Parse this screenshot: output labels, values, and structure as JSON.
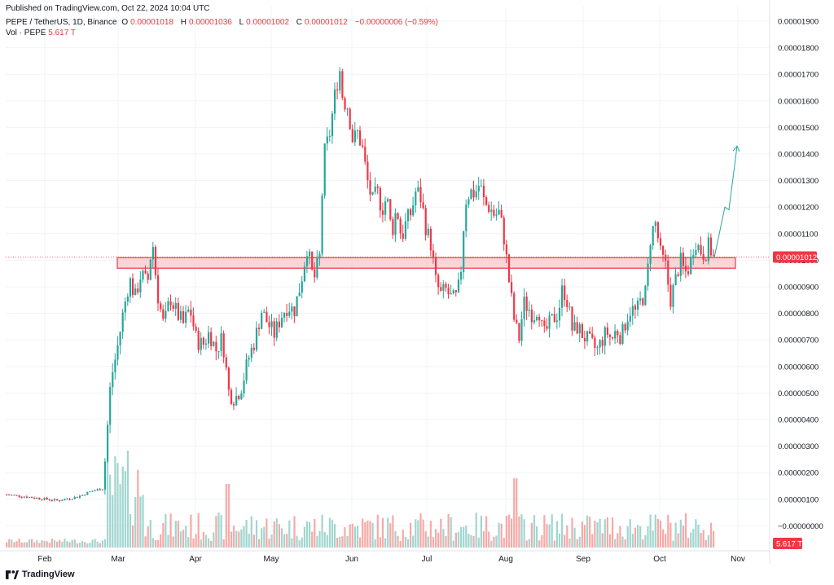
{
  "header": {
    "published": "Published on TradingView.com, Oct 22, 2024 10:04 UTC"
  },
  "legend": {
    "symbol": "PEPE / TetherUS, 1D, Binance",
    "o_label": "O",
    "o": "0.00001018",
    "h_label": "H",
    "h": "0.00001036",
    "l_label": "L",
    "l": "0.00001002",
    "c_label": "C",
    "c": "0.00001012",
    "change": "−0.00000006 (−0.59%)",
    "vol_label": "Vol · PEPE",
    "vol": "5.617 T"
  },
  "footer": {
    "brand": "TradingView"
  },
  "colors": {
    "up": "#26a69a",
    "down": "#f23645",
    "zone_fill": "#f9c5cb",
    "zone_border": "#f23645",
    "arrow": "#26a69a"
  },
  "chart_data": {
    "type": "candlestick",
    "y_ticks": [
      "0.00001900",
      "0.00001800",
      "0.00001700",
      "0.00001600",
      "0.00001500",
      "0.00001400",
      "0.00001300",
      "0.00001200",
      "0.00001100",
      "0.00001000",
      "0.00000900",
      "0.00000800",
      "0.00000700",
      "0.00000600",
      "0.00000500",
      "0.00000400",
      "0.00000300",
      "0.00000200",
      "0.00000100",
      "−0.00000000"
    ],
    "y_tick_values": [
      19,
      18,
      17,
      16,
      15,
      14,
      13,
      12,
      11,
      10,
      9,
      8,
      7,
      6,
      5,
      4,
      3,
      2,
      1,
      0
    ],
    "y_unit": "1e-6",
    "x_ticks": [
      "Feb",
      "Mar",
      "Apr",
      "May",
      "Jun",
      "Jul",
      "Aug",
      "Sep",
      "Oct",
      "Nov"
    ],
    "last_price_label": "0.00001012",
    "last_price": 10.12,
    "volume_label": "5.617 T",
    "support_zone": [
      9.7,
      10.1
    ],
    "projection": [
      [
        10.1,
        0
      ],
      [
        12.0,
        1
      ],
      [
        11.9,
        0
      ],
      [
        14.3,
        1
      ]
    ],
    "price_path": [
      [
        0,
        1.2
      ],
      [
        30,
        1.1
      ],
      [
        70,
        0.95
      ],
      [
        95,
        1.1
      ],
      [
        110,
        1.3
      ],
      [
        125,
        1.4
      ],
      [
        128,
        2.5
      ],
      [
        135,
        5.5
      ],
      [
        142,
        6.5
      ],
      [
        150,
        8.0
      ],
      [
        158,
        9.3
      ],
      [
        165,
        8.6
      ],
      [
        172,
        9.5
      ],
      [
        180,
        9.1
      ],
      [
        186,
        10.8
      ],
      [
        192,
        8.8
      ],
      [
        200,
        7.5
      ],
      [
        208,
        8.6
      ],
      [
        216,
        8.0
      ],
      [
        224,
        7.6
      ],
      [
        232,
        8.2
      ],
      [
        240,
        7.0
      ],
      [
        248,
        6.8
      ],
      [
        256,
        7.3
      ],
      [
        264,
        6.6
      ],
      [
        272,
        7.1
      ],
      [
        280,
        5.0
      ],
      [
        288,
        4.8
      ],
      [
        296,
        5.3
      ],
      [
        304,
        6.3
      ],
      [
        312,
        7.0
      ],
      [
        320,
        8.1
      ],
      [
        328,
        7.6
      ],
      [
        336,
        7.2
      ],
      [
        344,
        7.9
      ],
      [
        352,
        8.3
      ],
      [
        360,
        8.1
      ],
      [
        368,
        9.1
      ],
      [
        376,
        10.5
      ],
      [
        384,
        9.2
      ],
      [
        392,
        10.2
      ],
      [
        396,
        13.9
      ],
      [
        404,
        14.8
      ],
      [
        410,
        16.2
      ],
      [
        416,
        17.2
      ],
      [
        420,
        16.0
      ],
      [
        426,
        15.8
      ],
      [
        432,
        14.5
      ],
      [
        438,
        14.8
      ],
      [
        444,
        14.2
      ],
      [
        450,
        13.0
      ],
      [
        456,
        12.2
      ],
      [
        462,
        12.6
      ],
      [
        468,
        11.9
      ],
      [
        474,
        12.4
      ],
      [
        480,
        11.0
      ],
      [
        486,
        12.0
      ],
      [
        492,
        10.8
      ],
      [
        498,
        11.5
      ],
      [
        504,
        11.8
      ],
      [
        510,
        12.7
      ],
      [
        516,
        12.3
      ],
      [
        522,
        11.2
      ],
      [
        528,
        10.6
      ],
      [
        534,
        9.2
      ],
      [
        540,
        8.7
      ],
      [
        546,
        8.9
      ],
      [
        552,
        8.6
      ],
      [
        558,
        8.5
      ],
      [
        564,
        9.2
      ],
      [
        570,
        12.2
      ],
      [
        576,
        12.6
      ],
      [
        582,
        12.5
      ],
      [
        588,
        12.9
      ],
      [
        594,
        12.1
      ],
      [
        600,
        12.0
      ],
      [
        606,
        11.7
      ],
      [
        612,
        11.8
      ],
      [
        618,
        10.8
      ],
      [
        624,
        9.2
      ],
      [
        630,
        7.8
      ],
      [
        636,
        7.0
      ],
      [
        642,
        8.4
      ],
      [
        648,
        8.2
      ],
      [
        654,
        7.9
      ],
      [
        660,
        8.3
      ],
      [
        666,
        7.1
      ],
      [
        672,
        7.5
      ],
      [
        678,
        7.8
      ],
      [
        684,
        8.0
      ],
      [
        690,
        9.0
      ],
      [
        696,
        8.4
      ],
      [
        702,
        7.3
      ],
      [
        708,
        7.5
      ],
      [
        714,
        7.2
      ],
      [
        720,
        7.0
      ],
      [
        726,
        6.8
      ],
      [
        732,
        6.6
      ],
      [
        738,
        7.0
      ],
      [
        744,
        7.3
      ],
      [
        750,
        7.0
      ],
      [
        756,
        7.4
      ],
      [
        762,
        7.1
      ],
      [
        768,
        7.8
      ],
      [
        774,
        8.2
      ],
      [
        780,
        8.0
      ],
      [
        786,
        8.5
      ],
      [
        792,
        8.8
      ],
      [
        798,
        11.0
      ],
      [
        804,
        11.4
      ],
      [
        810,
        10.2
      ],
      [
        816,
        9.8
      ],
      [
        822,
        8.5
      ],
      [
        828,
        9.2
      ],
      [
        834,
        10.0
      ],
      [
        840,
        9.5
      ],
      [
        846,
        9.8
      ],
      [
        852,
        10.8
      ],
      [
        858,
        10.4
      ],
      [
        864,
        10.2
      ],
      [
        870,
        10.6
      ],
      [
        874,
        10.1
      ],
      [
        877,
        10.12
      ]
    ]
  }
}
